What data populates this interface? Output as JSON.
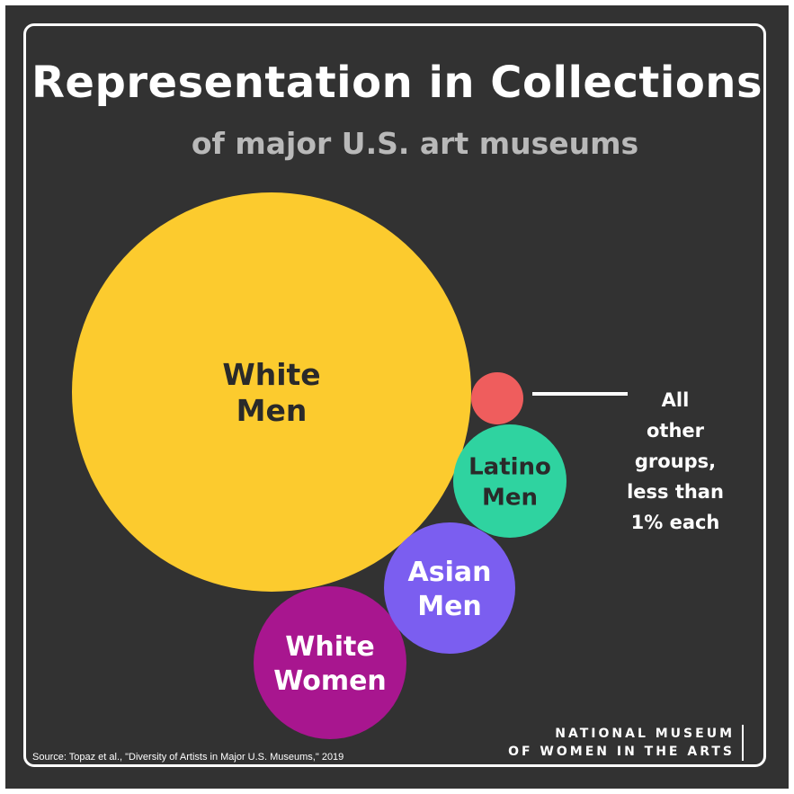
{
  "title": "Representation in Collections",
  "subtitle": "of major U.S. art museums",
  "annotation": [
    "All",
    "other",
    "groups,",
    "less than",
    "1% each"
  ],
  "source": "Source: Topaz et al., \"Diversity of Artists in Major U.S. Museums,\" 2019",
  "brand": [
    "NATIONAL MUSEUM",
    "OF WOMEN IN THE ARTS"
  ],
  "colors": {
    "background": "#323232",
    "white_men": "#fccb2e",
    "white_women": "#a8168f",
    "asian_men": "#7b5ef0",
    "latino_men": "#2fd3a0",
    "other": "#ef5d5d"
  },
  "chart_data": {
    "type": "bubble",
    "series": [
      {
        "label": [
          "White",
          "Men"
        ],
        "color": "#fccb2e",
        "text_color": "#2a2a2a"
      },
      {
        "label": [
          "White",
          "Women"
        ],
        "color": "#a8168f",
        "text_color": "#ffffff"
      },
      {
        "label": [
          "Asian",
          "Men"
        ],
        "color": "#7b5ef0",
        "text_color": "#ffffff"
      },
      {
        "label": [
          "Latino",
          "Men"
        ],
        "color": "#2fd3a0",
        "text_color": "#2a2a2a"
      },
      {
        "label": [
          "",
          ""
        ],
        "color": "#ef5d5d",
        "text_color": "#ffffff"
      }
    ]
  }
}
